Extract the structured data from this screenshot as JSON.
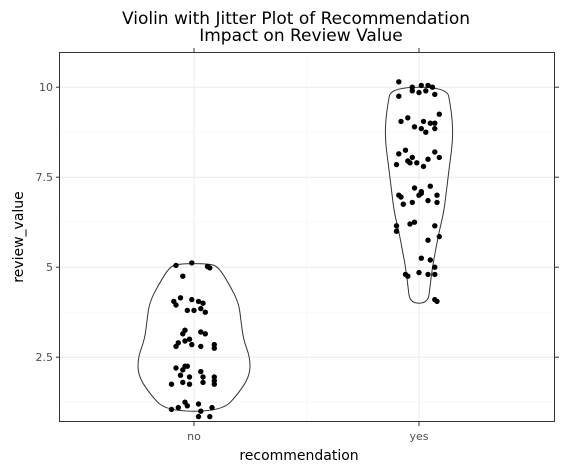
{
  "chart_data": {
    "type": "violin",
    "title_line1": "Violin with Jitter Plot of Recommendation",
    "title_line2": "Impact on Review Value",
    "xlabel": "recommendation",
    "ylabel": "review_value",
    "categories": [
      "no",
      "yes"
    ],
    "ylim": [
      0.7,
      10.7
    ],
    "yticks": [
      2.5,
      5,
      7.5,
      10
    ],
    "ytick_labels": [
      "2.5",
      "5",
      "7.5",
      "10"
    ],
    "grid": true,
    "violins": [
      {
        "category": "no",
        "profile": [
          [
            1.0,
            0.25
          ],
          [
            1.5,
            0.4
          ],
          [
            2.0,
            0.5
          ],
          [
            2.5,
            0.5
          ],
          [
            3.0,
            0.44
          ],
          [
            3.5,
            0.42
          ],
          [
            4.0,
            0.4
          ],
          [
            4.5,
            0.32
          ],
          [
            5.0,
            0.22
          ],
          [
            5.1,
            0.14
          ]
        ]
      },
      {
        "category": "yes",
        "profile": [
          [
            4.0,
            0.08
          ],
          [
            4.5,
            0.1
          ],
          [
            5.0,
            0.12
          ],
          [
            5.5,
            0.15
          ],
          [
            6.0,
            0.18
          ],
          [
            6.5,
            0.22
          ],
          [
            7.0,
            0.24
          ],
          [
            7.5,
            0.26
          ],
          [
            8.0,
            0.28
          ],
          [
            8.5,
            0.3
          ],
          [
            9.0,
            0.3
          ],
          [
            9.5,
            0.28
          ],
          [
            10.0,
            0.25
          ]
        ]
      }
    ],
    "points": [
      {
        "category": "no",
        "offset": -0.08,
        "value": 5.05
      },
      {
        "category": "no",
        "offset": -0.01,
        "value": 5.12
      },
      {
        "category": "no",
        "offset": 0.06,
        "value": 5.02
      },
      {
        "category": "no",
        "offset": 0.07,
        "value": 4.98
      },
      {
        "category": "no",
        "offset": -0.05,
        "value": 4.75
      },
      {
        "category": "no",
        "offset": -0.09,
        "value": 4.05
      },
      {
        "category": "no",
        "offset": -0.06,
        "value": 4.15
      },
      {
        "category": "no",
        "offset": -0.01,
        "value": 4.1
      },
      {
        "category": "no",
        "offset": 0.02,
        "value": 4.05
      },
      {
        "category": "no",
        "offset": 0.04,
        "value": 4.0
      },
      {
        "category": "no",
        "offset": 0.03,
        "value": 3.85
      },
      {
        "category": "no",
        "offset": 0.0,
        "value": 3.8
      },
      {
        "category": "no",
        "offset": -0.03,
        "value": 3.8
      },
      {
        "category": "no",
        "offset": -0.08,
        "value": 3.95
      },
      {
        "category": "no",
        "offset": 0.05,
        "value": 3.75
      },
      {
        "category": "no",
        "offset": -0.04,
        "value": 3.25
      },
      {
        "category": "no",
        "offset": 0.03,
        "value": 3.2
      },
      {
        "category": "no",
        "offset": 0.05,
        "value": 3.15
      },
      {
        "category": "no",
        "offset": -0.05,
        "value": 3.15
      },
      {
        "category": "no",
        "offset": -0.02,
        "value": 3.0
      },
      {
        "category": "no",
        "offset": -0.07,
        "value": 2.9
      },
      {
        "category": "no",
        "offset": -0.08,
        "value": 2.8
      },
      {
        "category": "no",
        "offset": -0.01,
        "value": 2.85
      },
      {
        "category": "no",
        "offset": 0.03,
        "value": 2.8
      },
      {
        "category": "no",
        "offset": 0.09,
        "value": 2.85
      },
      {
        "category": "no",
        "offset": 0.09,
        "value": 2.75
      },
      {
        "category": "no",
        "offset": -0.04,
        "value": 2.95
      },
      {
        "category": "no",
        "offset": -0.08,
        "value": 2.2
      },
      {
        "category": "no",
        "offset": -0.03,
        "value": 2.25
      },
      {
        "category": "no",
        "offset": -0.05,
        "value": 2.15
      },
      {
        "category": "no",
        "offset": 0.03,
        "value": 2.1
      },
      {
        "category": "no",
        "offset": -0.04,
        "value": 2.25
      },
      {
        "category": "no",
        "offset": -0.06,
        "value": 2.0
      },
      {
        "category": "no",
        "offset": -0.02,
        "value": 1.95
      },
      {
        "category": "no",
        "offset": 0.04,
        "value": 1.95
      },
      {
        "category": "no",
        "offset": 0.09,
        "value": 1.95
      },
      {
        "category": "no",
        "offset": 0.09,
        "value": 1.85
      },
      {
        "category": "no",
        "offset": -0.1,
        "value": 1.75
      },
      {
        "category": "no",
        "offset": -0.05,
        "value": 1.8
      },
      {
        "category": "no",
        "offset": -0.02,
        "value": 1.75
      },
      {
        "category": "no",
        "offset": 0.04,
        "value": 1.8
      },
      {
        "category": "no",
        "offset": 0.09,
        "value": 1.75
      },
      {
        "category": "no",
        "offset": -0.04,
        "value": 1.25
      },
      {
        "category": "no",
        "offset": -0.03,
        "value": 1.15
      },
      {
        "category": "no",
        "offset": 0.02,
        "value": 1.2
      },
      {
        "category": "no",
        "offset": 0.08,
        "value": 1.1
      },
      {
        "category": "no",
        "offset": -0.07,
        "value": 1.1
      },
      {
        "category": "no",
        "offset": -0.1,
        "value": 1.05
      },
      {
        "category": "no",
        "offset": 0.03,
        "value": 1.0
      },
      {
        "category": "no",
        "offset": 0.02,
        "value": 0.85
      },
      {
        "category": "no",
        "offset": 0.07,
        "value": 0.85
      },
      {
        "category": "yes",
        "offset": -0.09,
        "value": 10.15
      },
      {
        "category": "yes",
        "offset": -0.03,
        "value": 10.0
      },
      {
        "category": "yes",
        "offset": 0.01,
        "value": 10.05
      },
      {
        "category": "yes",
        "offset": 0.04,
        "value": 10.05
      },
      {
        "category": "yes",
        "offset": 0.06,
        "value": 10.0
      },
      {
        "category": "yes",
        "offset": -0.03,
        "value": 9.9
      },
      {
        "category": "yes",
        "offset": 0.0,
        "value": 9.85
      },
      {
        "category": "yes",
        "offset": 0.03,
        "value": 9.9
      },
      {
        "category": "yes",
        "offset": 0.07,
        "value": 9.8
      },
      {
        "category": "yes",
        "offset": -0.09,
        "value": 9.75
      },
      {
        "category": "yes",
        "offset": 0.09,
        "value": 9.25
      },
      {
        "category": "yes",
        "offset": -0.05,
        "value": 9.15
      },
      {
        "category": "yes",
        "offset": -0.08,
        "value": 9.05
      },
      {
        "category": "yes",
        "offset": 0.02,
        "value": 9.05
      },
      {
        "category": "yes",
        "offset": 0.05,
        "value": 9.0
      },
      {
        "category": "yes",
        "offset": 0.07,
        "value": 9.0
      },
      {
        "category": "yes",
        "offset": -0.02,
        "value": 8.9
      },
      {
        "category": "yes",
        "offset": 0.01,
        "value": 8.85
      },
      {
        "category": "yes",
        "offset": 0.07,
        "value": 8.85
      },
      {
        "category": "yes",
        "offset": 0.03,
        "value": 8.75
      },
      {
        "category": "yes",
        "offset": -0.06,
        "value": 8.25
      },
      {
        "category": "yes",
        "offset": 0.07,
        "value": 8.2
      },
      {
        "category": "yes",
        "offset": -0.09,
        "value": 8.15
      },
      {
        "category": "yes",
        "offset": -0.03,
        "value": 8.05
      },
      {
        "category": "yes",
        "offset": -0.04,
        "value": 7.9
      },
      {
        "category": "yes",
        "offset": 0.04,
        "value": 8.0
      },
      {
        "category": "yes",
        "offset": 0.09,
        "value": 8.05
      },
      {
        "category": "yes",
        "offset": -0.1,
        "value": 7.85
      },
      {
        "category": "yes",
        "offset": 0.02,
        "value": 7.8
      },
      {
        "category": "yes",
        "offset": -0.05,
        "value": 7.95
      },
      {
        "category": "yes",
        "offset": -0.01,
        "value": 7.9
      },
      {
        "category": "yes",
        "offset": -0.02,
        "value": 7.2
      },
      {
        "category": "yes",
        "offset": 0.05,
        "value": 7.25
      },
      {
        "category": "yes",
        "offset": 0.01,
        "value": 7.1
      },
      {
        "category": "yes",
        "offset": -0.09,
        "value": 7.0
      },
      {
        "category": "yes",
        "offset": 0.0,
        "value": 7.0
      },
      {
        "category": "yes",
        "offset": 0.01,
        "value": 7.05
      },
      {
        "category": "yes",
        "offset": 0.08,
        "value": 7.0
      },
      {
        "category": "yes",
        "offset": -0.08,
        "value": 6.95
      },
      {
        "category": "yes",
        "offset": -0.07,
        "value": 6.75
      },
      {
        "category": "yes",
        "offset": -0.03,
        "value": 6.8
      },
      {
        "category": "yes",
        "offset": 0.04,
        "value": 6.85
      },
      {
        "category": "yes",
        "offset": 0.08,
        "value": 6.8
      },
      {
        "category": "yes",
        "offset": -0.02,
        "value": 6.25
      },
      {
        "category": "yes",
        "offset": -0.1,
        "value": 6.15
      },
      {
        "category": "yes",
        "offset": -0.04,
        "value": 6.2
      },
      {
        "category": "yes",
        "offset": 0.07,
        "value": 6.15
      },
      {
        "category": "yes",
        "offset": -0.1,
        "value": 6.0
      },
      {
        "category": "yes",
        "offset": 0.09,
        "value": 5.85
      },
      {
        "category": "yes",
        "offset": 0.04,
        "value": 5.75
      },
      {
        "category": "yes",
        "offset": 0.01,
        "value": 5.25
      },
      {
        "category": "yes",
        "offset": 0.05,
        "value": 5.2
      },
      {
        "category": "yes",
        "offset": 0.07,
        "value": 5.0
      },
      {
        "category": "yes",
        "offset": -0.06,
        "value": 4.8
      },
      {
        "category": "yes",
        "offset": -0.05,
        "value": 4.75
      },
      {
        "category": "yes",
        "offset": 0.0,
        "value": 4.85
      },
      {
        "category": "yes",
        "offset": 0.04,
        "value": 4.8
      },
      {
        "category": "yes",
        "offset": 0.07,
        "value": 4.8
      },
      {
        "category": "yes",
        "offset": 0.07,
        "value": 4.1
      },
      {
        "category": "yes",
        "offset": 0.08,
        "value": 4.05
      }
    ],
    "colors": {
      "points": "#000000",
      "outline": "#333333",
      "grid": "#ebebeb",
      "panel_border": "#333333"
    }
  }
}
